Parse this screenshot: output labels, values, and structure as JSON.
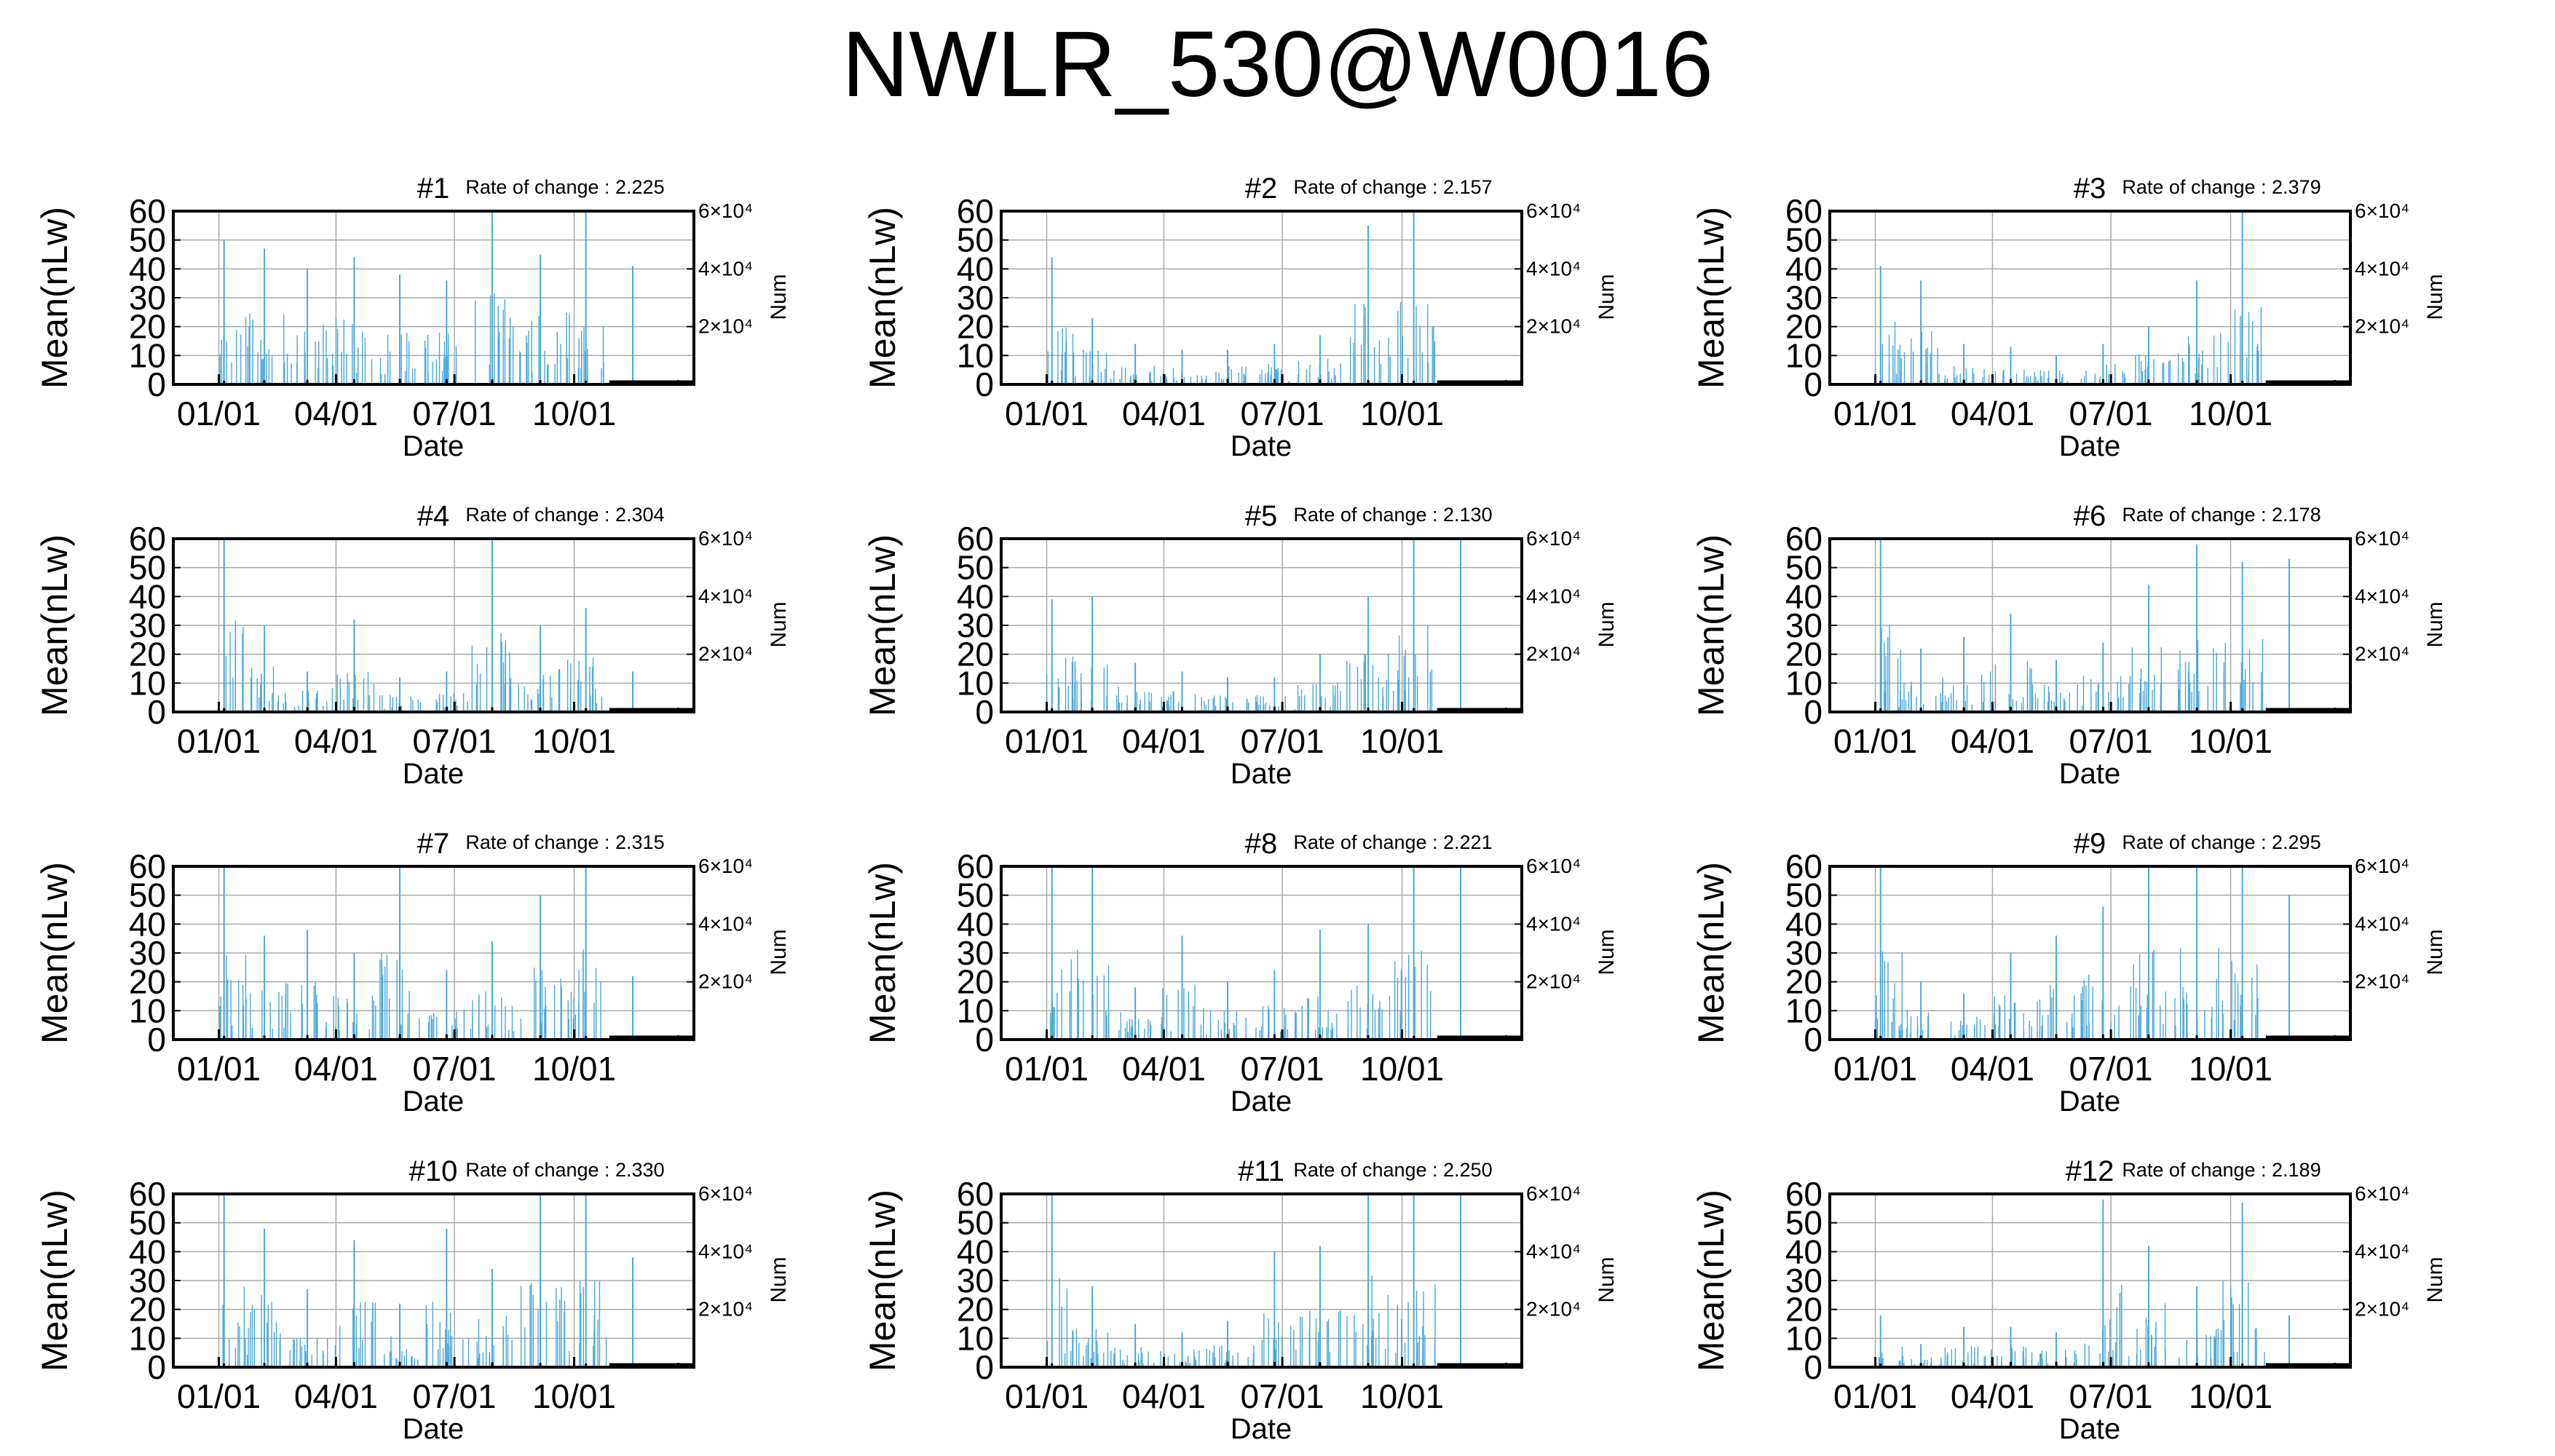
{
  "figure": {
    "title": "NWLR_530@W0016"
  },
  "colors": {
    "bar": "#4aa8d8",
    "axis": "#000000",
    "grid": "#a8a8a8",
    "num": "#000000"
  },
  "chart_data": [
    {
      "type": "bar",
      "title": "#1",
      "rate_label": "Rate of change : 2.225",
      "xlabel": "Date",
      "ylabel": "Mean(nLw)",
      "y2label": "Num",
      "xticks": [
        "01/01",
        "04/01",
        "07/01",
        "10/01"
      ],
      "yticks": [
        "0",
        "10",
        "20",
        "30",
        "40",
        "50",
        "60"
      ],
      "ylim": [
        0,
        60
      ],
      "y2ticks": [
        "2×10⁴",
        "4×10⁴",
        "6×10⁴"
      ],
      "y2lim": [
        0,
        60000
      ],
      "grid": true,
      "x": [
        "01/05",
        "02/05",
        "03/10",
        "04/15",
        "05/20",
        "06/25",
        "07/30",
        "09/05",
        "10/10",
        "11/15",
        "12/20"
      ],
      "values": [
        50,
        47,
        40,
        44,
        38,
        36,
        60,
        45,
        60,
        41,
        0
      ],
      "num": [
        300,
        450,
        600,
        800,
        900,
        800,
        700,
        500,
        300,
        150,
        500
      ]
    },
    {
      "type": "bar",
      "title": "#2",
      "rate_label": "Rate of change : 2.157",
      "xlabel": "Date",
      "ylabel": "Mean(nLw)",
      "y2label": "Num",
      "xticks": [
        "01/01",
        "04/01",
        "07/01",
        "10/01"
      ],
      "yticks": [
        "0",
        "10",
        "20",
        "30",
        "40",
        "50",
        "60"
      ],
      "ylim": [
        0,
        60
      ],
      "y2ticks": [
        "2×10⁴",
        "4×10⁴",
        "6×10⁴"
      ],
      "y2lim": [
        0,
        60000
      ],
      "grid": true,
      "x": [
        "01/05",
        "02/05",
        "03/10",
        "04/15",
        "05/20",
        "06/25",
        "07/30",
        "09/05",
        "10/10",
        "11/15",
        "12/20"
      ],
      "values": [
        44,
        23,
        14,
        12,
        12,
        14,
        17,
        55,
        60,
        0,
        0
      ],
      "num": [
        300,
        450,
        600,
        800,
        900,
        800,
        700,
        500,
        300,
        150,
        500
      ]
    },
    {
      "type": "bar",
      "title": "#3",
      "rate_label": "Rate of change : 2.379",
      "xlabel": "Date",
      "ylabel": "Mean(nLw)",
      "y2label": "Num",
      "xticks": [
        "01/01",
        "04/01",
        "07/01",
        "10/01"
      ],
      "yticks": [
        "0",
        "10",
        "20",
        "30",
        "40",
        "50",
        "60"
      ],
      "ylim": [
        0,
        60
      ],
      "y2ticks": [
        "2×10⁴",
        "4×10⁴",
        "6×10⁴"
      ],
      "y2lim": [
        0,
        60000
      ],
      "grid": true,
      "x": [
        "01/05",
        "02/05",
        "03/10",
        "04/15",
        "05/20",
        "06/25",
        "07/30",
        "09/05",
        "10/10",
        "11/15",
        "12/20"
      ],
      "values": [
        41,
        36,
        14,
        13,
        10,
        14,
        20,
        36,
        60,
        0,
        0
      ],
      "num": [
        300,
        450,
        600,
        800,
        900,
        800,
        700,
        500,
        300,
        150,
        500
      ]
    },
    {
      "type": "bar",
      "title": "#4",
      "rate_label": "Rate of change : 2.304",
      "xlabel": "Date",
      "ylabel": "Mean(nLw)",
      "y2label": "Num",
      "xticks": [
        "01/01",
        "04/01",
        "07/01",
        "10/01"
      ],
      "yticks": [
        "0",
        "10",
        "20",
        "30",
        "40",
        "50",
        "60"
      ],
      "ylim": [
        0,
        60
      ],
      "y2ticks": [
        "2×10⁴",
        "4×10⁴",
        "6×10⁴"
      ],
      "y2lim": [
        0,
        60000
      ],
      "grid": true,
      "x": [
        "01/05",
        "02/05",
        "03/10",
        "04/15",
        "05/20",
        "06/25",
        "07/30",
        "09/05",
        "10/10",
        "11/15",
        "12/20"
      ],
      "values": [
        60,
        30,
        14,
        32,
        12,
        14,
        60,
        30,
        36,
        14,
        0
      ],
      "num": [
        300,
        450,
        600,
        800,
        900,
        800,
        700,
        500,
        300,
        150,
        500
      ]
    },
    {
      "type": "bar",
      "title": "#5",
      "rate_label": "Rate of change : 2.130",
      "xlabel": "Date",
      "ylabel": "Mean(nLw)",
      "y2label": "Num",
      "xticks": [
        "01/01",
        "04/01",
        "07/01",
        "10/01"
      ],
      "yticks": [
        "0",
        "10",
        "20",
        "30",
        "40",
        "50",
        "60"
      ],
      "ylim": [
        0,
        60
      ],
      "y2ticks": [
        "2×10⁴",
        "4×10⁴",
        "6×10⁴"
      ],
      "y2lim": [
        0,
        60000
      ],
      "grid": true,
      "x": [
        "01/05",
        "02/05",
        "03/10",
        "04/15",
        "05/20",
        "06/25",
        "07/30",
        "09/05",
        "10/10",
        "11/15",
        "12/20"
      ],
      "values": [
        39,
        40,
        17,
        14,
        12,
        12,
        20,
        40,
        60,
        60,
        0
      ],
      "num": [
        300,
        450,
        600,
        800,
        900,
        800,
        700,
        500,
        300,
        150,
        500
      ]
    },
    {
      "type": "bar",
      "title": "#6",
      "rate_label": "Rate of change : 2.178",
      "xlabel": "Date",
      "ylabel": "Mean(nLw)",
      "y2label": "Num",
      "xticks": [
        "01/01",
        "04/01",
        "07/01",
        "10/01"
      ],
      "yticks": [
        "0",
        "10",
        "20",
        "30",
        "40",
        "50",
        "60"
      ],
      "ylim": [
        0,
        60
      ],
      "y2ticks": [
        "2×10⁴",
        "4×10⁴",
        "6×10⁴"
      ],
      "y2lim": [
        0,
        60000
      ],
      "grid": true,
      "x": [
        "01/05",
        "02/05",
        "03/10",
        "04/15",
        "05/20",
        "06/25",
        "07/30",
        "09/05",
        "10/10",
        "11/15",
        "12/20"
      ],
      "values": [
        60,
        22,
        26,
        34,
        18,
        24,
        44,
        58,
        52,
        53,
        0
      ],
      "num": [
        300,
        450,
        600,
        800,
        900,
        800,
        700,
        500,
        300,
        150,
        500
      ]
    },
    {
      "type": "bar",
      "title": "#7",
      "rate_label": "Rate of change : 2.315",
      "xlabel": "Date",
      "ylabel": "Mean(nLw)",
      "y2label": "Num",
      "xticks": [
        "01/01",
        "04/01",
        "07/01",
        "10/01"
      ],
      "yticks": [
        "0",
        "10",
        "20",
        "30",
        "40",
        "50",
        "60"
      ],
      "ylim": [
        0,
        60
      ],
      "y2ticks": [
        "2×10⁴",
        "4×10⁴",
        "6×10⁴"
      ],
      "y2lim": [
        0,
        60000
      ],
      "grid": true,
      "x": [
        "01/05",
        "02/05",
        "03/10",
        "04/15",
        "05/20",
        "06/25",
        "07/30",
        "09/05",
        "10/10",
        "11/15",
        "12/20"
      ],
      "values": [
        60,
        36,
        38,
        30,
        60,
        24,
        34,
        50,
        60,
        22,
        0
      ],
      "num": [
        300,
        450,
        600,
        800,
        900,
        800,
        700,
        500,
        300,
        150,
        500
      ]
    },
    {
      "type": "bar",
      "title": "#8",
      "rate_label": "Rate of change : 2.221",
      "xlabel": "Date",
      "ylabel": "Mean(nLw)",
      "y2label": "Num",
      "xticks": [
        "01/01",
        "04/01",
        "07/01",
        "10/01"
      ],
      "yticks": [
        "0",
        "10",
        "20",
        "30",
        "40",
        "50",
        "60"
      ],
      "ylim": [
        0,
        60
      ],
      "y2ticks": [
        "2×10⁴",
        "4×10⁴",
        "6×10⁴"
      ],
      "y2lim": [
        0,
        60000
      ],
      "grid": true,
      "x": [
        "01/05",
        "02/05",
        "03/10",
        "04/15",
        "05/20",
        "06/25",
        "07/30",
        "09/05",
        "10/10",
        "11/15",
        "12/20"
      ],
      "values": [
        60,
        60,
        18,
        36,
        20,
        24,
        38,
        40,
        60,
        60,
        0
      ],
      "num": [
        300,
        450,
        600,
        800,
        900,
        800,
        700,
        500,
        300,
        150,
        500
      ]
    },
    {
      "type": "bar",
      "title": "#9",
      "rate_label": "Rate of change : 2.295",
      "xlabel": "Date",
      "ylabel": "Mean(nLw)",
      "y2label": "Num",
      "xticks": [
        "01/01",
        "04/01",
        "07/01",
        "10/01"
      ],
      "yticks": [
        "0",
        "10",
        "20",
        "30",
        "40",
        "50",
        "60"
      ],
      "ylim": [
        0,
        60
      ],
      "y2ticks": [
        "2×10⁴",
        "4×10⁴",
        "6×10⁴"
      ],
      "y2lim": [
        0,
        60000
      ],
      "grid": true,
      "x": [
        "01/05",
        "02/05",
        "03/10",
        "04/15",
        "05/20",
        "06/25",
        "07/30",
        "09/05",
        "10/10",
        "11/15",
        "12/20"
      ],
      "values": [
        60,
        20,
        16,
        30,
        36,
        46,
        60,
        60,
        60,
        50,
        0
      ],
      "num": [
        300,
        450,
        600,
        800,
        900,
        800,
        700,
        500,
        300,
        150,
        500
      ]
    },
    {
      "type": "bar",
      "title": "#10",
      "rate_label": "Rate of change : 2.330",
      "xlabel": "Date",
      "ylabel": "Mean(nLw)",
      "y2label": "Num",
      "xticks": [
        "01/01",
        "04/01",
        "07/01",
        "10/01"
      ],
      "yticks": [
        "0",
        "10",
        "20",
        "30",
        "40",
        "50",
        "60"
      ],
      "ylim": [
        0,
        60
      ],
      "y2ticks": [
        "2×10⁴",
        "4×10⁴",
        "6×10⁴"
      ],
      "y2lim": [
        0,
        60000
      ],
      "grid": true,
      "x": [
        "01/05",
        "02/05",
        "03/10",
        "04/15",
        "05/20",
        "06/25",
        "07/30",
        "09/05",
        "10/10",
        "11/15",
        "12/20"
      ],
      "values": [
        60,
        48,
        27,
        44,
        22,
        48,
        34,
        60,
        60,
        38,
        0
      ],
      "num": [
        300,
        450,
        600,
        800,
        900,
        800,
        700,
        500,
        300,
        150,
        500
      ]
    },
    {
      "type": "bar",
      "title": "#11",
      "rate_label": "Rate of change : 2.250",
      "xlabel": "Date",
      "ylabel": "Mean(nLw)",
      "y2label": "Num",
      "xticks": [
        "01/01",
        "04/01",
        "07/01",
        "10/01"
      ],
      "yticks": [
        "0",
        "10",
        "20",
        "30",
        "40",
        "50",
        "60"
      ],
      "ylim": [
        0,
        60
      ],
      "y2ticks": [
        "2×10⁴",
        "4×10⁴",
        "6×10⁴"
      ],
      "y2lim": [
        0,
        60000
      ],
      "grid": true,
      "x": [
        "01/05",
        "02/05",
        "03/10",
        "04/15",
        "05/20",
        "06/25",
        "07/30",
        "09/05",
        "10/10",
        "11/15",
        "12/20"
      ],
      "values": [
        60,
        28,
        15,
        12,
        16,
        40,
        42,
        60,
        60,
        60,
        0
      ],
      "num": [
        300,
        450,
        600,
        800,
        900,
        800,
        700,
        500,
        300,
        150,
        500
      ]
    },
    {
      "type": "bar",
      "title": "#12",
      "rate_label": "Rate of change : 2.189",
      "xlabel": "Date",
      "ylabel": "Mean(nLw)",
      "y2label": "Num",
      "xticks": [
        "01/01",
        "04/01",
        "07/01",
        "10/01"
      ],
      "yticks": [
        "0",
        "10",
        "20",
        "30",
        "40",
        "50",
        "60"
      ],
      "ylim": [
        0,
        60
      ],
      "y2ticks": [
        "2×10⁴",
        "4×10⁴",
        "6×10⁴"
      ],
      "y2lim": [
        0,
        60000
      ],
      "grid": true,
      "x": [
        "01/05",
        "02/05",
        "03/10",
        "04/15",
        "05/20",
        "06/25",
        "07/30",
        "09/05",
        "10/10",
        "11/15",
        "12/20"
      ],
      "values": [
        18,
        8,
        14,
        14,
        12,
        58,
        42,
        28,
        57,
        18,
        0
      ],
      "num": [
        300,
        450,
        600,
        800,
        900,
        800,
        700,
        500,
        300,
        150,
        500
      ]
    }
  ]
}
